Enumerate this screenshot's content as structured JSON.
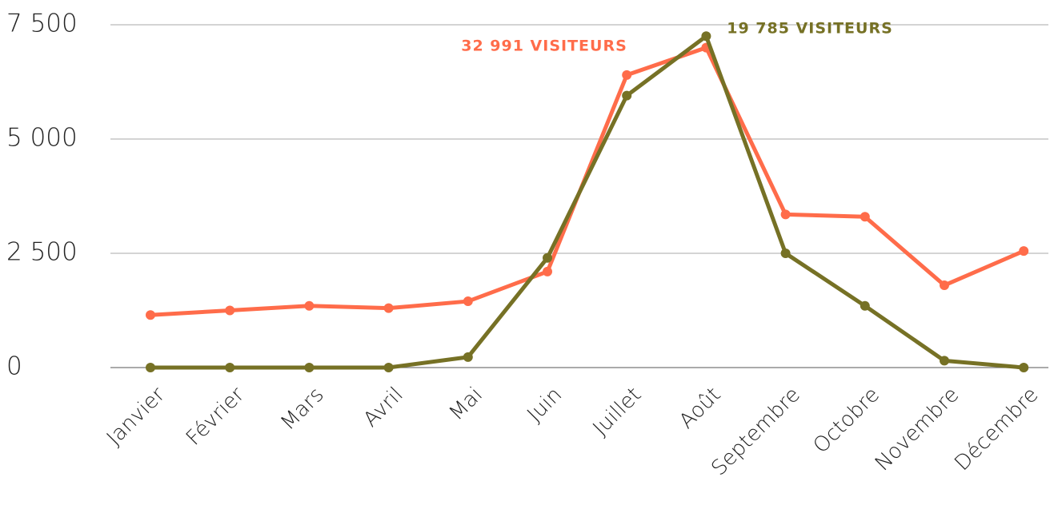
{
  "chart_data": {
    "type": "line",
    "categories": [
      "Janvier",
      "Février",
      "Mars",
      "Avril",
      "Mai",
      "Juin",
      "Juillet",
      "Août",
      "Septembre",
      "Octobre",
      "Novembre",
      "Décembre"
    ],
    "series": [
      {
        "color": "#ff6c4a",
        "annotation": "32 991 VISITEURS",
        "values": [
          1150,
          1250,
          1350,
          1300,
          1450,
          2100,
          6400,
          7000,
          3350,
          3300,
          1800,
          2550
        ]
      },
      {
        "color": "#767125",
        "annotation": "19 785  VISITEURS",
        "values": [
          0,
          0,
          0,
          0,
          230,
          2400,
          5950,
          7250,
          2500,
          1350,
          150,
          0
        ]
      }
    ],
    "ylim": [
      0,
      7500
    ],
    "yticks": [
      {
        "value": 0,
        "label": "0"
      },
      {
        "value": 2500,
        "label": "2 500"
      },
      {
        "value": 5000,
        "label": "5 000"
      },
      {
        "value": 7500,
        "label": "7 500"
      }
    ],
    "grid": true
  }
}
